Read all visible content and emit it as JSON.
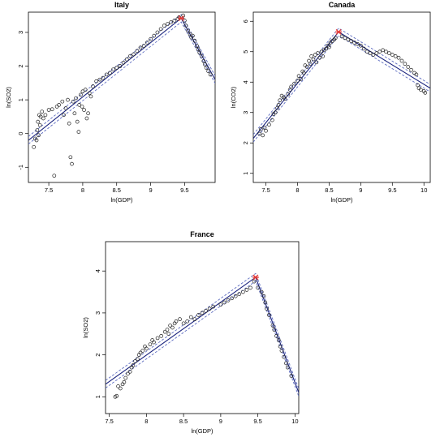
{
  "colors": {
    "points": "#222222",
    "fit_line": "#1a237e",
    "ci_band": "#5c6bc0",
    "turning_point": "#e53935",
    "frame": "#000000"
  },
  "chart_data": [
    {
      "type": "scatter",
      "title": "Italy",
      "xlabel": "ln(GDP)",
      "ylabel": "ln(SO2)",
      "xlim": [
        7.2,
        9.95
      ],
      "ylim": [
        -1.45,
        3.6
      ],
      "xticks": [
        7.5,
        8.0,
        8.5,
        9.0,
        9.5
      ],
      "yticks": [
        -1,
        0,
        1,
        2,
        3
      ],
      "grid": false,
      "turning_point": {
        "x": 9.45,
        "y": 3.42
      },
      "fit": [
        [
          7.2,
          -0.2
        ],
        [
          9.45,
          3.42
        ],
        [
          9.95,
          1.6
        ]
      ],
      "points": [
        [
          7.28,
          -0.4
        ],
        [
          7.3,
          -0.15
        ],
        [
          7.32,
          -0.2
        ],
        [
          7.33,
          0.1
        ],
        [
          7.35,
          -0.05
        ],
        [
          7.34,
          0.35
        ],
        [
          7.36,
          0.55
        ],
        [
          7.37,
          0.25
        ],
        [
          7.38,
          0.5
        ],
        [
          7.4,
          0.65
        ],
        [
          7.42,
          0.45
        ],
        [
          7.45,
          0.55
        ],
        [
          7.5,
          0.7
        ],
        [
          7.55,
          0.72
        ],
        [
          7.58,
          -1.25
        ],
        [
          7.62,
          0.8
        ],
        [
          7.65,
          0.85
        ],
        [
          7.7,
          0.95
        ],
        [
          7.72,
          0.55
        ],
        [
          7.75,
          0.75
        ],
        [
          7.78,
          1.0
        ],
        [
          7.8,
          0.3
        ],
        [
          7.82,
          -0.7
        ],
        [
          7.84,
          -0.9
        ],
        [
          7.86,
          0.95
        ],
        [
          7.88,
          0.6
        ],
        [
          7.9,
          1.05
        ],
        [
          7.92,
          0.35
        ],
        [
          7.94,
          0.05
        ],
        [
          7.95,
          0.85
        ],
        [
          7.97,
          1.15
        ],
        [
          7.99,
          0.8
        ],
        [
          8.0,
          1.25
        ],
        [
          8.02,
          0.7
        ],
        [
          8.04,
          1.3
        ],
        [
          8.06,
          0.45
        ],
        [
          8.08,
          0.6
        ],
        [
          8.1,
          1.2
        ],
        [
          8.12,
          1.1
        ],
        [
          8.15,
          1.4
        ],
        [
          8.2,
          1.55
        ],
        [
          8.25,
          1.6
        ],
        [
          8.3,
          1.65
        ],
        [
          8.35,
          1.75
        ],
        [
          8.4,
          1.8
        ],
        [
          8.45,
          1.9
        ],
        [
          8.5,
          1.95
        ],
        [
          8.55,
          2.0
        ],
        [
          8.6,
          2.1
        ],
        [
          8.65,
          2.2
        ],
        [
          8.7,
          2.3
        ],
        [
          8.75,
          2.35
        ],
        [
          8.8,
          2.45
        ],
        [
          8.85,
          2.55
        ],
        [
          8.9,
          2.6
        ],
        [
          8.95,
          2.7
        ],
        [
          9.0,
          2.8
        ],
        [
          9.05,
          2.9
        ],
        [
          9.1,
          3.0
        ],
        [
          9.15,
          3.1
        ],
        [
          9.2,
          3.2
        ],
        [
          9.25,
          3.25
        ],
        [
          9.3,
          3.3
        ],
        [
          9.35,
          3.35
        ],
        [
          9.4,
          3.4
        ],
        [
          9.42,
          3.45
        ],
        [
          9.48,
          3.5
        ],
        [
          9.5,
          3.35
        ],
        [
          9.52,
          3.2
        ],
        [
          9.55,
          3.05
        ],
        [
          9.58,
          2.95
        ],
        [
          9.6,
          2.85
        ],
        [
          9.62,
          2.9
        ],
        [
          9.65,
          2.75
        ],
        [
          9.68,
          2.6
        ],
        [
          9.7,
          2.5
        ],
        [
          9.72,
          2.4
        ],
        [
          9.75,
          2.3
        ],
        [
          9.78,
          2.15
        ],
        [
          9.8,
          2.05
        ],
        [
          9.82,
          1.95
        ],
        [
          9.85,
          1.85
        ],
        [
          9.88,
          1.75
        ]
      ]
    },
    {
      "type": "scatter",
      "title": "Canada",
      "xlabel": "ln(GDP)",
      "ylabel": "ln(CO2)",
      "xlim": [
        7.3,
        10.1
      ],
      "ylim": [
        0.7,
        6.3
      ],
      "xticks": [
        7.5,
        8.0,
        8.5,
        9.0,
        9.5,
        10.0
      ],
      "yticks": [
        1,
        2,
        3,
        4,
        5,
        6
      ],
      "grid": false,
      "turning_point": {
        "x": 8.65,
        "y": 5.65
      },
      "fit": [
        [
          7.3,
          2.15
        ],
        [
          8.65,
          5.65
        ],
        [
          10.1,
          3.8
        ]
      ],
      "points": [
        [
          7.4,
          2.3
        ],
        [
          7.42,
          2.45
        ],
        [
          7.45,
          2.25
        ],
        [
          7.48,
          2.5
        ],
        [
          7.5,
          2.4
        ],
        [
          7.55,
          2.6
        ],
        [
          7.6,
          2.75
        ],
        [
          7.62,
          2.95
        ],
        [
          7.65,
          3.0
        ],
        [
          7.68,
          3.15
        ],
        [
          7.7,
          3.25
        ],
        [
          7.72,
          3.4
        ],
        [
          7.75,
          3.55
        ],
        [
          7.78,
          3.5
        ],
        [
          7.8,
          3.45
        ],
        [
          7.85,
          3.6
        ],
        [
          7.88,
          3.75
        ],
        [
          7.9,
          3.85
        ],
        [
          7.95,
          3.95
        ],
        [
          8.0,
          4.05
        ],
        [
          8.02,
          4.2
        ],
        [
          8.05,
          4.1
        ],
        [
          8.08,
          4.35
        ],
        [
          8.1,
          4.3
        ],
        [
          8.12,
          4.55
        ],
        [
          8.15,
          4.5
        ],
        [
          8.18,
          4.7
        ],
        [
          8.2,
          4.6
        ],
        [
          8.22,
          4.85
        ],
        [
          8.25,
          4.75
        ],
        [
          8.28,
          4.9
        ],
        [
          8.3,
          4.65
        ],
        [
          8.32,
          4.95
        ],
        [
          8.35,
          4.8
        ],
        [
          8.38,
          5.0
        ],
        [
          8.4,
          4.85
        ],
        [
          8.42,
          5.05
        ],
        [
          8.45,
          5.1
        ],
        [
          8.48,
          5.2
        ],
        [
          8.5,
          5.15
        ],
        [
          8.52,
          5.3
        ],
        [
          8.55,
          5.35
        ],
        [
          8.58,
          5.4
        ],
        [
          8.6,
          5.45
        ],
        [
          8.7,
          5.5
        ],
        [
          8.75,
          5.45
        ],
        [
          8.8,
          5.4
        ],
        [
          8.85,
          5.35
        ],
        [
          8.9,
          5.3
        ],
        [
          8.95,
          5.25
        ],
        [
          9.0,
          5.2
        ],
        [
          9.05,
          5.1
        ],
        [
          9.1,
          5.0
        ],
        [
          9.15,
          4.95
        ],
        [
          9.2,
          4.9
        ],
        [
          9.25,
          4.95
        ],
        [
          9.3,
          5.0
        ],
        [
          9.35,
          5.05
        ],
        [
          9.4,
          5.0
        ],
        [
          9.45,
          4.95
        ],
        [
          9.5,
          4.9
        ],
        [
          9.55,
          4.85
        ],
        [
          9.6,
          4.8
        ],
        [
          9.65,
          4.7
        ],
        [
          9.7,
          4.6
        ],
        [
          9.75,
          4.5
        ],
        [
          9.8,
          4.4
        ],
        [
          9.85,
          4.3
        ],
        [
          9.88,
          4.25
        ],
        [
          9.9,
          3.9
        ],
        [
          9.92,
          3.8
        ],
        [
          9.95,
          3.75
        ],
        [
          10.0,
          3.7
        ],
        [
          10.02,
          3.65
        ]
      ]
    },
    {
      "type": "scatter",
      "title": "France",
      "xlabel": "ln(GDP)",
      "ylabel": "ln(SO2)",
      "xlim": [
        7.45,
        10.05
      ],
      "ylim": [
        0.6,
        4.7
      ],
      "xticks": [
        7.5,
        8.0,
        8.5,
        9.0,
        9.5,
        10.0
      ],
      "yticks": [
        1,
        2,
        3,
        4
      ],
      "grid": false,
      "turning_point": {
        "x": 9.47,
        "y": 3.85
      },
      "fit": [
        [
          7.45,
          1.3
        ],
        [
          9.47,
          3.85
        ],
        [
          10.05,
          1.1
        ]
      ],
      "points": [
        [
          7.58,
          1.0
        ],
        [
          7.6,
          1.02
        ],
        [
          7.62,
          1.25
        ],
        [
          7.65,
          1.2
        ],
        [
          7.68,
          1.3
        ],
        [
          7.7,
          1.35
        ],
        [
          7.72,
          1.45
        ],
        [
          7.75,
          1.55
        ],
        [
          7.78,
          1.6
        ],
        [
          7.8,
          1.7
        ],
        [
          7.82,
          1.75
        ],
        [
          7.85,
          1.85
        ],
        [
          7.88,
          1.9
        ],
        [
          7.9,
          2.0
        ],
        [
          7.92,
          2.05
        ],
        [
          7.95,
          2.1
        ],
        [
          7.98,
          2.2
        ],
        [
          8.0,
          2.15
        ],
        [
          8.05,
          2.25
        ],
        [
          8.08,
          2.35
        ],
        [
          8.1,
          2.3
        ],
        [
          8.15,
          2.4
        ],
        [
          8.2,
          2.45
        ],
        [
          8.25,
          2.55
        ],
        [
          8.28,
          2.6
        ],
        [
          8.3,
          2.5
        ],
        [
          8.32,
          2.7
        ],
        [
          8.35,
          2.65
        ],
        [
          8.38,
          2.75
        ],
        [
          8.4,
          2.8
        ],
        [
          8.45,
          2.85
        ],
        [
          8.5,
          2.75
        ],
        [
          8.55,
          2.8
        ],
        [
          8.6,
          2.9
        ],
        [
          8.65,
          2.85
        ],
        [
          8.7,
          2.95
        ],
        [
          8.75,
          3.0
        ],
        [
          8.8,
          3.05
        ],
        [
          8.85,
          3.1
        ],
        [
          8.9,
          3.15
        ],
        [
          9.0,
          3.2
        ],
        [
          9.05,
          3.25
        ],
        [
          9.1,
          3.3
        ],
        [
          9.15,
          3.35
        ],
        [
          9.2,
          3.4
        ],
        [
          9.25,
          3.45
        ],
        [
          9.3,
          3.5
        ],
        [
          9.35,
          3.55
        ],
        [
          9.4,
          3.6
        ],
        [
          9.45,
          3.75
        ],
        [
          9.5,
          3.6
        ],
        [
          9.55,
          3.5
        ],
        [
          9.58,
          3.4
        ],
        [
          9.6,
          3.25
        ],
        [
          9.62,
          3.1
        ],
        [
          9.65,
          2.95
        ],
        [
          9.7,
          2.7
        ],
        [
          9.72,
          2.6
        ],
        [
          9.75,
          2.45
        ],
        [
          9.78,
          2.35
        ],
        [
          9.8,
          2.2
        ],
        [
          9.82,
          2.1
        ],
        [
          9.85,
          1.95
        ],
        [
          9.88,
          1.8
        ],
        [
          9.9,
          1.7
        ],
        [
          9.95,
          1.5
        ]
      ]
    }
  ]
}
